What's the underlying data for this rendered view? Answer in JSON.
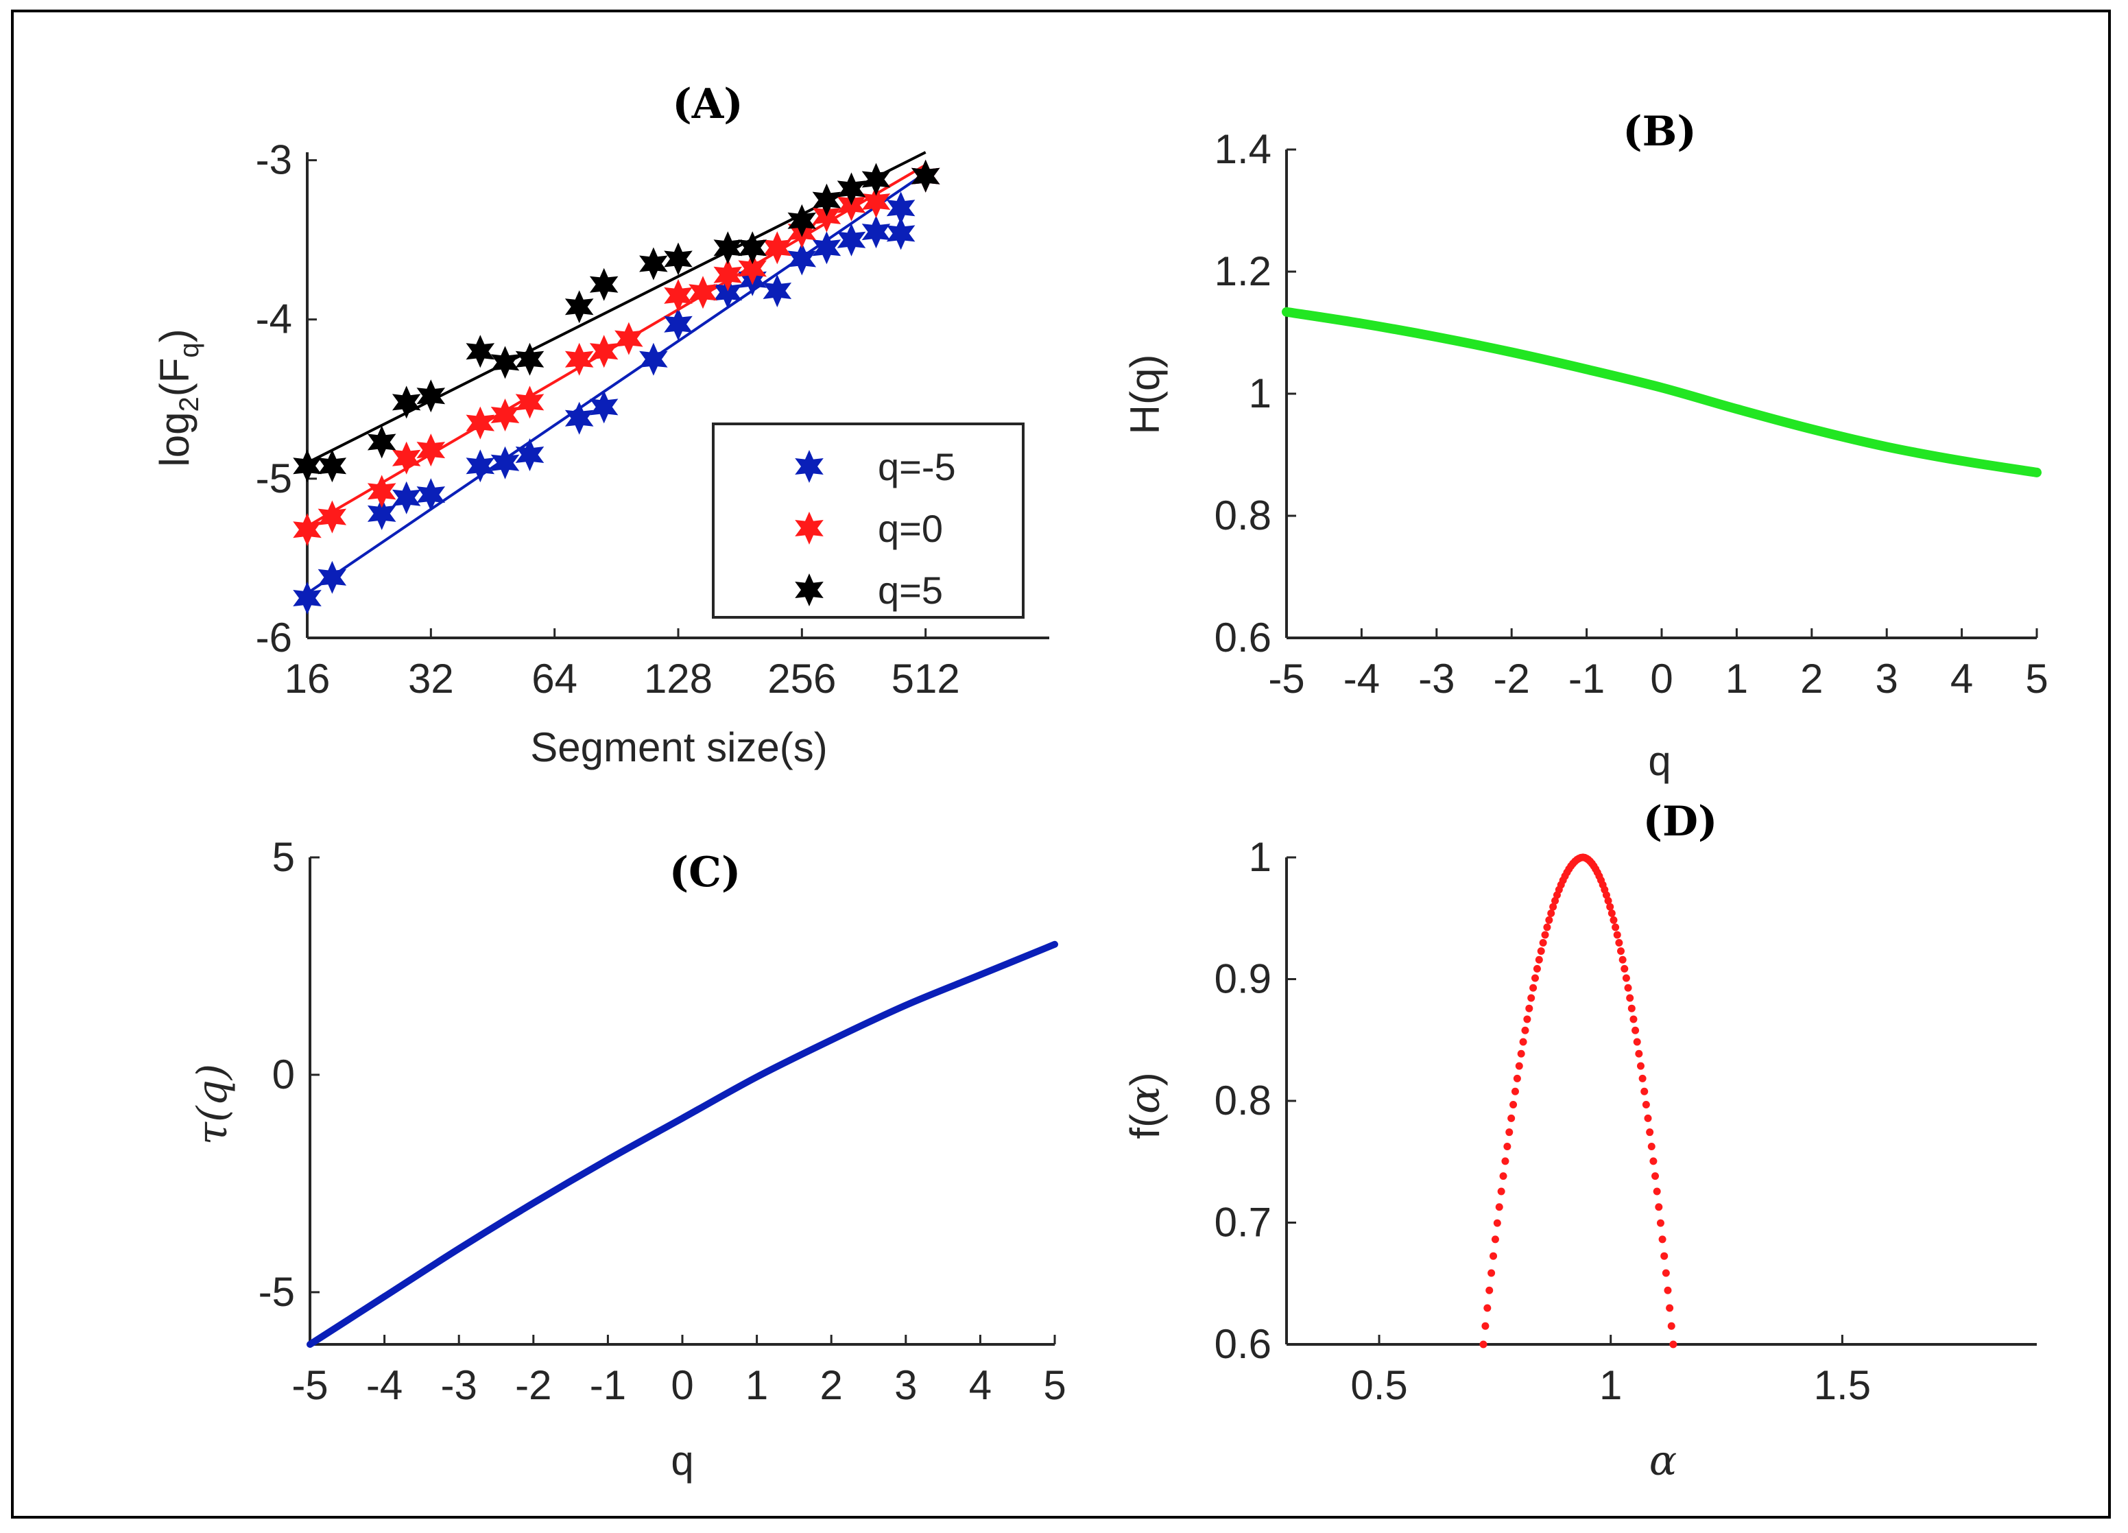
{
  "colors": {
    "blue": "#0a1fb8",
    "red": "#ff1a1a",
    "black": "#000000",
    "green": "#22e622",
    "axis": "#262626"
  },
  "chart_data": [
    {
      "panel": "A",
      "type": "scatter",
      "title": "(A)",
      "xlabel": "Segment size(s)",
      "ylabel": "log2(Fq)",
      "ylabel_main": "log",
      "ylabel_sub2": "2",
      "ylabel_open": "(F",
      "ylabel_subq": "q",
      "ylabel_close": ")",
      "xscale": "log2",
      "xlim": [
        16,
        1024
      ],
      "ylim": [
        -6,
        -2.95
      ],
      "xticks": [
        16,
        32,
        64,
        128,
        256,
        512
      ],
      "xtick_labels": [
        "16",
        "32",
        "64",
        "128",
        "256",
        "512"
      ],
      "yticks": [
        -6,
        -5,
        -4,
        -3
      ],
      "ytick_labels": [
        "-6",
        "-5",
        "-4",
        "-3"
      ],
      "legend_position": "center-right",
      "x": [
        16,
        18.4,
        21.1,
        24.3,
        27.9,
        32,
        36.8,
        42.2,
        48.5,
        55.7,
        64,
        73.5,
        84.4,
        97,
        111.4,
        128,
        147,
        168.9,
        194,
        222.9,
        256,
        294.1,
        337.8,
        388,
        445.7,
        512
      ],
      "series": [
        {
          "name": "q=-5",
          "color": "#0a1fb8",
          "values": [
            -5.75,
            -5.62,
            -5.22,
            -5.12,
            -5.1,
            -4.92,
            -4.9,
            -4.85,
            -4.62,
            -4.55,
            -4.25,
            -4.03,
            -3.83,
            -3.75,
            -3.82,
            -3.62,
            -3.55,
            -3.5,
            -3.45,
            -3.3,
            -3.46,
            -3.1
          ],
          "x_index_offset": 0,
          "x_override": [
            16,
            18.4,
            24.3,
            27.9,
            32,
            42.2,
            48.5,
            55.7,
            73.5,
            84.4,
            111.4,
            128,
            169,
            194,
            222.9,
            256,
            294.1,
            337.8,
            388,
            445.7,
            445.7,
            512
          ],
          "fit": [
            -5.72,
            -3.08
          ]
        },
        {
          "name": "q=0",
          "color": "#ff1a1a",
          "values": [
            -5.32,
            -5.24,
            -5.08,
            -4.87,
            -4.82,
            -4.65,
            -4.6,
            -4.52,
            -4.25,
            -4.2,
            -4.12,
            -3.85,
            -3.83,
            -3.72,
            -3.68,
            -3.55,
            -3.45,
            -3.35,
            -3.28,
            -3.26,
            -3.1
          ],
          "x_override": [
            16,
            18.4,
            24.3,
            27.9,
            32,
            42.2,
            48.5,
            55.7,
            73.5,
            84.4,
            97,
            128,
            147,
            169,
            194,
            222.9,
            256,
            294.1,
            337.8,
            388,
            512
          ],
          "fit": [
            -5.3,
            -3.03
          ]
        },
        {
          "name": "q=5",
          "color": "#000000",
          "values": [
            -4.92,
            -4.92,
            -4.77,
            -4.52,
            -4.48,
            -4.2,
            -4.27,
            -4.25,
            -3.92,
            -3.78,
            -3.65,
            -3.62,
            -3.55,
            -3.55,
            -3.38,
            -3.25,
            -3.18,
            -3.12,
            -3.1
          ],
          "x_override": [
            16,
            18.4,
            24.3,
            27.9,
            32,
            42.2,
            48.5,
            55.7,
            73.5,
            84.4,
            111.4,
            128,
            169,
            194,
            256,
            294.1,
            337.8,
            388,
            512
          ],
          "fit": [
            -4.9,
            -2.95
          ]
        }
      ]
    },
    {
      "panel": "B",
      "type": "line",
      "title": "(B)",
      "xlabel": "q",
      "ylabel": "H(q)",
      "xlim": [
        -5,
        5
      ],
      "ylim": [
        0.6,
        1.4
      ],
      "xticks": [
        -5,
        -4,
        -3,
        -2,
        -1,
        0,
        1,
        2,
        3,
        4,
        5
      ],
      "xtick_labels": [
        "-5",
        "-4",
        "-3",
        "-2",
        "-1",
        "0",
        "1",
        "2",
        "3",
        "4",
        "5"
      ],
      "yticks": [
        0.6,
        0.8,
        1,
        1.2,
        1.4
      ],
      "ytick_labels": [
        "0.6",
        "0.8",
        "1",
        "1.2",
        "1.4"
      ],
      "series": [
        {
          "name": "H(q)",
          "color": "#22e622",
          "x": [
            -5,
            -4,
            -3,
            -2,
            -1,
            0,
            1,
            2,
            3,
            4,
            5
          ],
          "values": [
            1.134,
            1.115,
            1.093,
            1.068,
            1.04,
            1.01,
            0.975,
            0.942,
            0.913,
            0.89,
            0.871
          ]
        }
      ]
    },
    {
      "panel": "C",
      "type": "line",
      "title": "(C)",
      "xlabel": "q",
      "ylabel": "τ(q)",
      "xlim": [
        -5,
        5
      ],
      "ylim": [
        -6.2,
        5
      ],
      "xticks": [
        -5,
        -4,
        -3,
        -2,
        -1,
        0,
        1,
        2,
        3,
        4,
        5
      ],
      "xtick_labels": [
        "-5",
        "-4",
        "-3",
        "-2",
        "-1",
        "0",
        "1",
        "2",
        "3",
        "4",
        "5"
      ],
      "yticks": [
        -5,
        0,
        5
      ],
      "ytick_labels": [
        "-5",
        "0",
        "5"
      ],
      "series": [
        {
          "name": "tau(q)",
          "color": "#0a1fb8",
          "x": [
            -5,
            -4,
            -3,
            -2,
            -1,
            0,
            1,
            2,
            3,
            4,
            5
          ],
          "values": [
            -6.2,
            -5.1,
            -4.0,
            -2.95,
            -1.95,
            -1.0,
            -0.05,
            0.8,
            1.6,
            2.3,
            3.0
          ]
        }
      ]
    },
    {
      "panel": "D",
      "type": "scatter",
      "title": "(D)",
      "xlabel": "α",
      "ylabel": "f(α)",
      "ylabel_prefix": "f(",
      "ylabel_greek": "α",
      "ylabel_suffix": ")",
      "xlim": [
        0.3,
        1.92
      ],
      "ylim": [
        0.6,
        1.0
      ],
      "xticks": [
        0.5,
        1,
        1.5
      ],
      "xtick_labels": [
        "0.5",
        "1",
        "1.5"
      ],
      "yticks": [
        0.6,
        0.7,
        0.8,
        0.9,
        1
      ],
      "ytick_labels": [
        "0.6",
        "0.7",
        "0.8",
        "0.9",
        "1"
      ],
      "series": [
        {
          "name": "f(alpha)",
          "color": "#ff1a1a",
          "alpha_left": 0.725,
          "alpha_peak": 0.94,
          "alpha_right": 1.135,
          "f_peak": 1.0,
          "f_min": 0.6,
          "points_per_side": 50
        }
      ]
    }
  ]
}
